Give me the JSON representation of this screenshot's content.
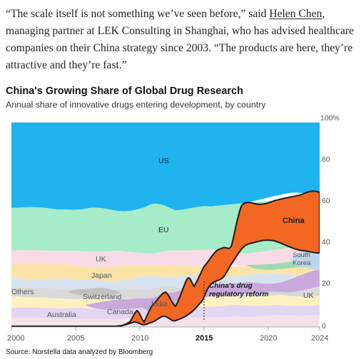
{
  "quote": {
    "part1": "“The scale itself is not something we’ve seen before,” said ",
    "link_text": "Helen Chen",
    "part2": ", managing partner at LEK Consulting in Shanghai, who has advised healthcare companies on their China strategy since 2003. “The products are here, they’re attractive and they’re fast.”"
  },
  "chart_data": {
    "type": "area",
    "title": "China's Growing Share of Global Drug Research",
    "subtitle": "Annual share of innovative drugs entering development, by country",
    "source": "Source: Norstella data analyzed by Bloomberg",
    "x_range": [
      2000,
      2024
    ],
    "ylim": [
      0,
      100
    ],
    "x_tick_labels": [
      "2000",
      "2005",
      "2010",
      "2015",
      "2020",
      "2024"
    ],
    "y_tick_labels": [
      "0",
      "20",
      "40",
      "60",
      "80",
      "100%"
    ],
    "series": [
      {
        "name": "China",
        "color": "#f26722",
        "x": [
          2000,
          2005,
          2009,
          2010,
          2011,
          2012,
          2013,
          2014,
          2015,
          2016,
          2017,
          2018,
          2020,
          2022,
          2023,
          2024
        ],
        "values": [
          0.5,
          0.5,
          0.6,
          2.5,
          1.2,
          4.5,
          7.5,
          4,
          15,
          19,
          21,
          27,
          30,
          30,
          28,
          30
        ]
      },
      {
        "name": "India",
        "color": "#c8ccd8",
        "x": [
          2000,
          2024
        ],
        "values": [
          3,
          3
        ]
      },
      {
        "name": "US",
        "color": "#1fb3f0",
        "x": [
          2000,
          2024
        ],
        "values": [
          50,
          40
        ]
      },
      {
        "name": "EU",
        "color": "#a6ecc8",
        "x": [
          2000,
          2024
        ],
        "values": [
          17,
          12
        ]
      },
      {
        "name": "UK",
        "color": "#f6dbe6",
        "x": [
          2000,
          2024
        ],
        "values": [
          5,
          4
        ]
      },
      {
        "name": "Japan",
        "color": "#fbe3a8",
        "x": [
          2000,
          2024
        ],
        "values": [
          6,
          3
        ]
      },
      {
        "name": "South Korea",
        "color": "#d7e3ee",
        "x": [
          2000,
          2024
        ],
        "values": [
          2,
          6
        ]
      },
      {
        "name": "Switzerland",
        "color": "#d9d9d9",
        "x": [
          2000,
          2024
        ],
        "values": [
          3,
          2
        ]
      },
      {
        "name": "Canada",
        "color": "#fff0c0",
        "x": [
          2000,
          2024
        ],
        "values": [
          2,
          2
        ]
      },
      {
        "name": "Australia",
        "color": "#e3d6f2",
        "x": [
          2000,
          2024
        ],
        "values": [
          2,
          4
        ]
      },
      {
        "name": "Others",
        "color": "#f3e2ea",
        "x": [
          2000,
          2024
        ],
        "values": [
          6,
          8
        ]
      }
    ],
    "annotations": [
      {
        "text": "China's drug",
        "x": 2015
      },
      {
        "text": "regulatory reform",
        "x": 2015
      }
    ],
    "highlight_x": "2015"
  }
}
